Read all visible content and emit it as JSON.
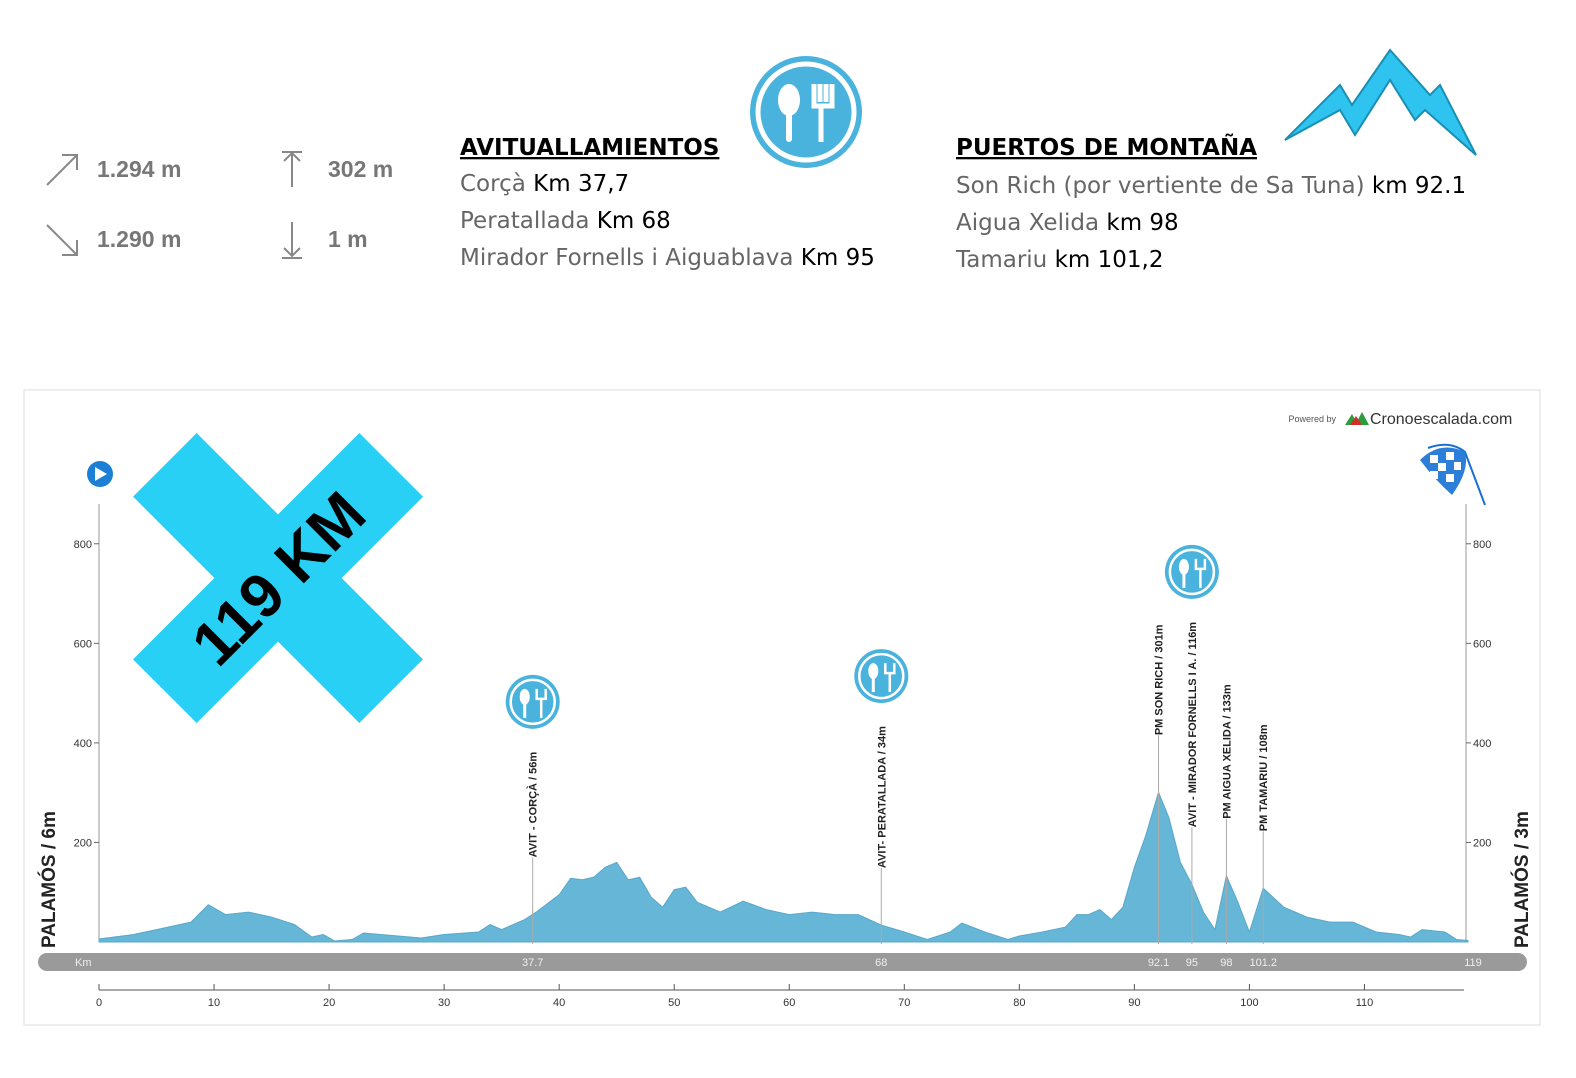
{
  "stats": {
    "ascent": "1.294 m",
    "descent": "1.290 m",
    "max": "302 m",
    "min": "1 m"
  },
  "feed_zones": {
    "title": "AVITUALLAMIENTOS",
    "items": [
      {
        "place": "Corçà",
        "km": "Km 37,7"
      },
      {
        "place": "Peratallada",
        "km": "Km 68"
      },
      {
        "place": "Mirador Fornells i Aiguablava",
        "km": "Km 95"
      }
    ]
  },
  "climbs": {
    "title": "PUERTOS DE MONTAÑA",
    "items": [
      {
        "place": "Son Rich (por vertiente de Sa Tuna)",
        "km": "km 92.1"
      },
      {
        "place": "Aigua Xelida",
        "km": "km 98"
      },
      {
        "place": "Tamariu",
        "km": "km 101,2"
      }
    ]
  },
  "chart_data": {
    "type": "area",
    "color": "#66b6d7",
    "x": [
      0,
      3,
      5,
      8,
      9.5,
      11,
      13,
      15,
      17,
      18.5,
      19.5,
      20.5,
      22,
      23,
      26,
      28,
      30,
      33,
      34,
      35,
      37,
      38,
      40,
      41,
      42,
      43,
      44,
      45,
      46,
      47,
      48,
      49,
      50,
      51,
      52,
      54,
      56,
      58,
      60,
      62,
      64,
      66,
      68,
      70,
      72,
      74,
      75,
      77,
      79,
      80,
      82,
      84,
      85,
      86,
      87,
      88,
      89,
      90,
      91,
      92.1,
      93,
      94,
      95,
      96,
      97,
      98,
      99,
      100,
      101.2,
      103,
      105,
      107,
      109,
      111,
      113,
      114,
      115,
      117,
      118,
      119
    ],
    "values": [
      6,
      15,
      25,
      40,
      75,
      55,
      60,
      50,
      35,
      10,
      15,
      2,
      5,
      18,
      12,
      8,
      15,
      20,
      35,
      25,
      45,
      60,
      95,
      128,
      125,
      130,
      150,
      160,
      125,
      130,
      90,
      70,
      105,
      110,
      80,
      60,
      82,
      65,
      55,
      60,
      55,
      55,
      34,
      20,
      5,
      20,
      38,
      20,
      5,
      12,
      20,
      30,
      55,
      55,
      65,
      45,
      70,
      150,
      215,
      301,
      250,
      160,
      116,
      60,
      25,
      133,
      80,
      20,
      108,
      70,
      50,
      40,
      40,
      20,
      15,
      10,
      25,
      20,
      5,
      3
    ],
    "xlim": [
      0,
      119
    ],
    "xticks": [
      0,
      10,
      20,
      30,
      40,
      50,
      60,
      70,
      80,
      90,
      100,
      110
    ],
    "ylim": [
      0,
      900
    ],
    "yticks": [
      200,
      400,
      600,
      800
    ],
    "x_unit": "Km",
    "start_label": "PALAMÓS / 6m",
    "finish_label": "PALAMÓS / 3m",
    "badge": "119 KM",
    "credit": "Powered by",
    "brand": "Cronoescalada.com",
    "markers": [
      {
        "x": 37.7,
        "label": "AVIT - CORÇÀ / 56m",
        "icon": "food"
      },
      {
        "x": 68,
        "label": "AVIT- PERATALLADA / 34m",
        "icon": "food"
      },
      {
        "x": 92.1,
        "label": "PM SON RICH / 301m"
      },
      {
        "x": 95,
        "label": "AVIT - MIRADOR FORNELLS I A. / 116m",
        "icon": "food"
      },
      {
        "x": 98,
        "label": "PM AIGUA XELIDA / 133m"
      },
      {
        "x": 101.2,
        "label": "PM TAMARIU / 108m"
      }
    ]
  }
}
